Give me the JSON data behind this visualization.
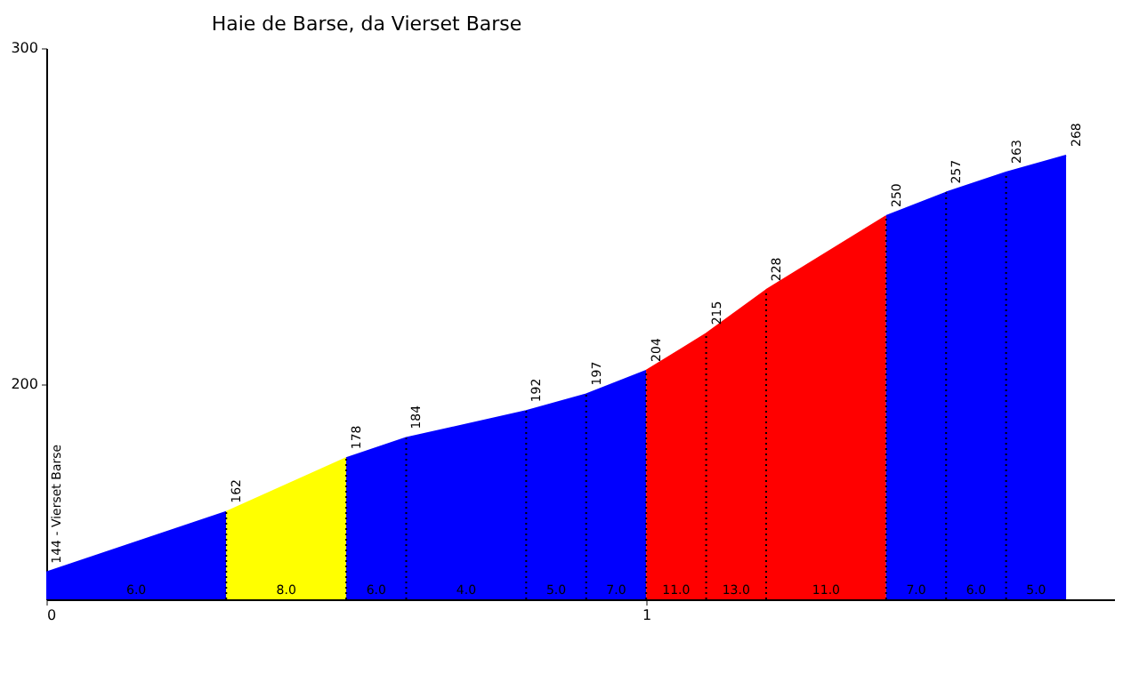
{
  "chart_data": {
    "type": "area",
    "title": "Haie de Barse, da Vierset Barse",
    "series": [
      {
        "color": "#0000ff",
        "x": [
          0,
          0.3
        ],
        "values": [
          144,
          162
        ],
        "value_labels": [
          "144 - Vierset Barse",
          "162"
        ]
      },
      {
        "color": "#ffff00",
        "x": [
          0.3,
          0.5
        ],
        "values": [
          162,
          178
        ],
        "value_labels": [
          null,
          "178"
        ]
      },
      {
        "color": "#0000ff",
        "x": [
          0.5,
          0.6,
          0.8,
          0.9,
          1.0
        ],
        "values": [
          178,
          184,
          192,
          197,
          204
        ],
        "value_labels": [
          null,
          "184",
          "192",
          "197",
          "204"
        ]
      },
      {
        "color": "#ff0000",
        "x": [
          1.0,
          1.1,
          1.2,
          1.4
        ],
        "values": [
          204,
          215,
          228,
          250
        ],
        "value_labels": [
          null,
          "215",
          "228",
          "250"
        ]
      },
      {
        "color": "#0000ff",
        "x": [
          1.4,
          1.5,
          1.6,
          1.7
        ],
        "values": [
          250,
          257,
          263,
          268
        ],
        "value_labels": [
          null,
          "257",
          "263",
          "268"
        ]
      }
    ],
    "xlim": [
      0,
      1.78
    ],
    "xticks": [
      {
        "value": 0,
        "label": "0"
      },
      {
        "value": 1,
        "label": "1"
      }
    ],
    "ylim": [
      136,
      300
    ],
    "yticks": [
      200,
      300
    ],
    "grid": false,
    "legend": false,
    "annotations": [
      "6.0",
      "8.0",
      "6.0",
      "4.0",
      "5.0",
      "7.0",
      "11.0",
      "13.0",
      "11.0",
      "7.0",
      "6.0",
      "5.0"
    ]
  }
}
